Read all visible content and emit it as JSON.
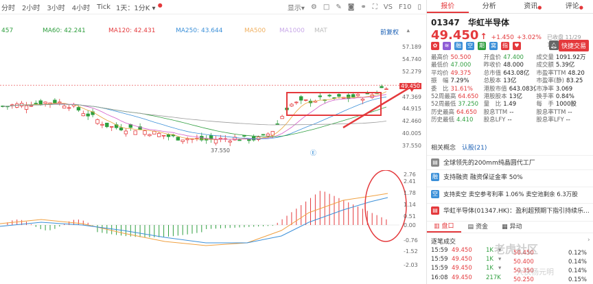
{
  "toolbar": {
    "periods": [
      "分时",
      "2小时",
      "3小时",
      "4小时",
      "Tick"
    ],
    "period_dropdown": "1天：1分K",
    "right_items": [
      "显示",
      "VS",
      "F10"
    ]
  },
  "ma_legend": {
    "first": "457",
    "ma60": "MA60: 42.241",
    "ma120": "MA120: 42.431",
    "ma250": "MA250: 43.644",
    "ma500": "MA500",
    "ma1000": "MA1000",
    "mat": "MAT",
    "fq": "前复权",
    "colors": {
      "ma60": "#2e9e3e",
      "ma120": "#e4393c",
      "ma250": "#3a8fd8",
      "ma500": "#f0b060",
      "ma1000": "#c8a8e8",
      "mat": "#c8c8c8"
    }
  },
  "price_axis": {
    "labels": [
      "57.189",
      "54.740",
      "52.279",
      "49.450",
      "47.369",
      "44.915",
      "42.460",
      "40.005",
      "37.550"
    ],
    "current": "49.450",
    "low_marker": "37.550"
  },
  "macd_axis": {
    "labels": [
      "2.76",
      "2.41",
      "1.78",
      "1.14",
      "0.51",
      "0.00",
      "-0.76",
      "-1.52",
      "-2.03"
    ]
  },
  "tabs": [
    "报价",
    "分析",
    "资讯",
    "评论"
  ],
  "stock": {
    "code": "01347",
    "name": "华虹半导体",
    "price": "49.450",
    "change": "+1.450",
    "change_pct": "+3.02%",
    "status": "已收盘 11/29 16:08(北京)",
    "trade_button": "快捷交易"
  },
  "quote": [
    [
      [
        "最高价",
        "50.500",
        "up"
      ],
      [
        "开盘价",
        "47.400",
        "dn"
      ],
      [
        "成交量",
        "1091.92万",
        ""
      ]
    ],
    [
      [
        "最低价",
        "47.000",
        "dn"
      ],
      [
        "昨收价",
        "48.000",
        ""
      ],
      [
        "成交额",
        "5.39亿",
        ""
      ]
    ],
    [
      [
        "平均价",
        "49.375",
        "up"
      ],
      [
        "总市值",
        "643.08亿",
        ""
      ],
      [
        "市盈率TTM",
        "48.20",
        ""
      ]
    ],
    [
      [
        "振　幅",
        "7.29%",
        ""
      ],
      [
        "总股本",
        "13亿",
        ""
      ],
      [
        "市盈率(静)",
        "83.25",
        ""
      ]
    ],
    [
      [
        "委　比",
        "31.61%",
        "up"
      ],
      [
        "港股市值",
        "643.083亿",
        ""
      ],
      [
        "市净率",
        "3.069",
        ""
      ]
    ],
    [
      [
        "52周最高",
        "64.650",
        "up"
      ],
      [
        "港股股本",
        "13亿",
        ""
      ],
      [
        "换手率",
        "0.84%",
        ""
      ]
    ],
    [
      [
        "52周最低",
        "37.250",
        "dn"
      ],
      [
        "量　比",
        "1.49",
        ""
      ],
      [
        "每　手",
        "1000股",
        ""
      ]
    ],
    [
      [
        "历史最高",
        "64.650",
        "up"
      ],
      [
        "股息TTM",
        "--",
        ""
      ],
      [
        "股息率TTM",
        "--",
        ""
      ]
    ],
    [
      [
        "历史最低",
        "4.410",
        "dn"
      ],
      [
        "股息LFY",
        "--",
        ""
      ],
      [
        "股息率LFY",
        "--",
        ""
      ]
    ]
  ],
  "concept": {
    "label": "相关概念",
    "count": "认股(21)"
  },
  "news": [
    {
      "icon": "book-icon",
      "text": "全球领先的200mm纯晶圆代工厂"
    },
    {
      "icon": "finance-icon",
      "text": "支持融资 融资保证金率 50%"
    },
    {
      "icon": "short-icon",
      "text": "支持卖空 卖空参考利率 1.06% 卖空池剩余 6.3万股"
    },
    {
      "icon": "report-icon",
      "text": "华虹半导体(01347.HK)：盈利超预期下指引持续乐..."
    }
  ],
  "subtabs": [
    "盘口",
    "资金",
    "异动"
  ],
  "ticks_title": "逐笔成交",
  "ticks": [
    {
      "time": "15:59",
      "price": "49.450",
      "vol": "1K"
    },
    {
      "time": "15:59",
      "price": "49.450",
      "vol": "1K"
    },
    {
      "time": "15:59",
      "price": "49.450",
      "vol": "1K"
    },
    {
      "time": "16:08",
      "price": "49.450",
      "vol": "217K"
    }
  ],
  "depth_right": [
    {
      "price": "50.450",
      "pct": "0.12%"
    },
    {
      "price": "50.400",
      "pct": "0.14%"
    },
    {
      "price": "50.350",
      "pct": "0.14%"
    },
    {
      "price": "50.250",
      "pct": "0.15%"
    }
  ],
  "watermark": "老虎社区",
  "watermark2": "大侠杨元明"
}
